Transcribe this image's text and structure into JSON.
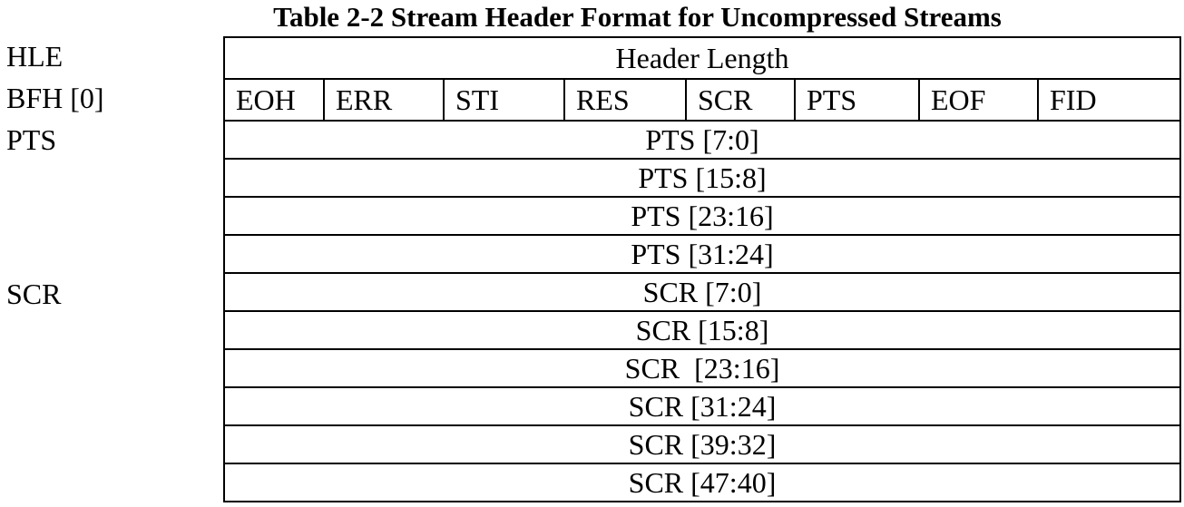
{
  "title": "Table 2-2 Stream Header Format for Uncompressed Streams",
  "side_labels": {
    "hle": "HLE",
    "bfh": "BFH [0]",
    "pts": "PTS",
    "scr": "SCR"
  },
  "header_length": "Header Length",
  "bfh_bits": [
    "EOH",
    "ERR",
    "STI",
    "RES",
    "SCR",
    "PTS",
    "EOF",
    "FID"
  ],
  "pts_rows": [
    "PTS [7:0]",
    "PTS [15:8]",
    "PTS [23:16]",
    "PTS [31:24]"
  ],
  "scr_rows": [
    "SCR [7:0]",
    "SCR [15:8]",
    "SCR  [23:16]",
    "SCR [31:24]",
    "SCR [39:32]",
    "SCR [47:40]"
  ]
}
